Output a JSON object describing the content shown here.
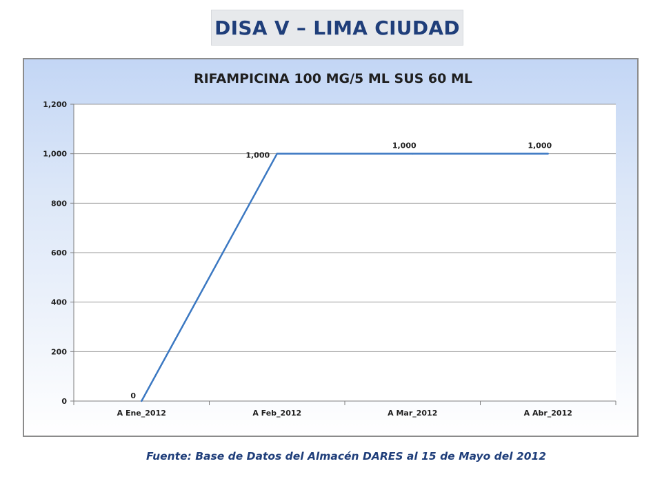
{
  "header": {
    "title": "DISA V – LIMA CIUDAD"
  },
  "chart_data": {
    "type": "line",
    "title": "RIFAMPICINA 100 MG/5 ML SUS 60 ML",
    "categories": [
      "A Ene_2012",
      "A Feb_2012",
      "A Mar_2012",
      "A Abr_2012"
    ],
    "series": [
      {
        "values": [
          0,
          1000,
          1000,
          1000
        ],
        "labels": [
          "0",
          "1,000",
          "1,000",
          "1,000"
        ],
        "color": "#3b78c2"
      }
    ],
    "yticks": [
      0,
      200,
      400,
      600,
      800,
      1000,
      1200
    ],
    "ytick_labels": [
      "0",
      "200",
      "400",
      "600",
      "800",
      "1,000",
      "1,200"
    ],
    "ylim": [
      0,
      1200
    ],
    "xlabel": "",
    "ylabel": "",
    "grid": true,
    "legend": "none"
  },
  "footer": {
    "source": "Fuente: Base de Datos del Almacén DARES al 15 de Mayo del 2012"
  }
}
